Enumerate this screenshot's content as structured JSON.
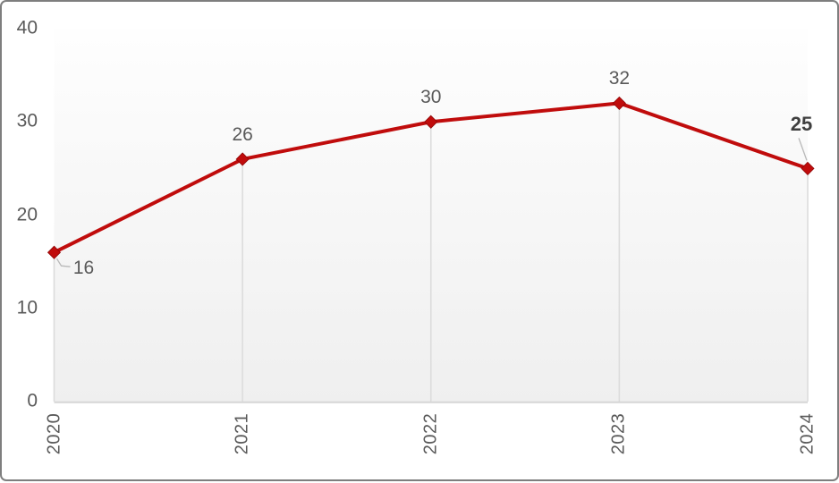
{
  "chart_data": {
    "type": "line",
    "categories": [
      "2020",
      "2021",
      "2022",
      "2023",
      "2024"
    ],
    "values": [
      16,
      26,
      30,
      32,
      25
    ],
    "data_labels": [
      "16",
      "26",
      "30",
      "32",
      "25"
    ],
    "title": "",
    "xlabel": "",
    "ylabel": "",
    "ylim": [
      0,
      40
    ],
    "y_ticks": [
      0,
      10,
      20,
      30,
      40
    ],
    "grid": "vertical-drop-lines-only",
    "legend": "none",
    "last_label_bold": true,
    "marker": "diamond",
    "colors": {
      "line": "#c00c0c",
      "marker_fill": "#c00c0c",
      "marker_edge": "#8f0707",
      "tick_text": "#595959",
      "bold_label_text": "#3f3f3f",
      "drop_line": "#dcdcdc",
      "axis_line": "#d6d6d6",
      "leader_line": "#b9b9b9",
      "plot_fill_top": "#fefefe",
      "plot_fill_bottom": "#efefef",
      "frame_border": "#7e7e7e"
    }
  }
}
